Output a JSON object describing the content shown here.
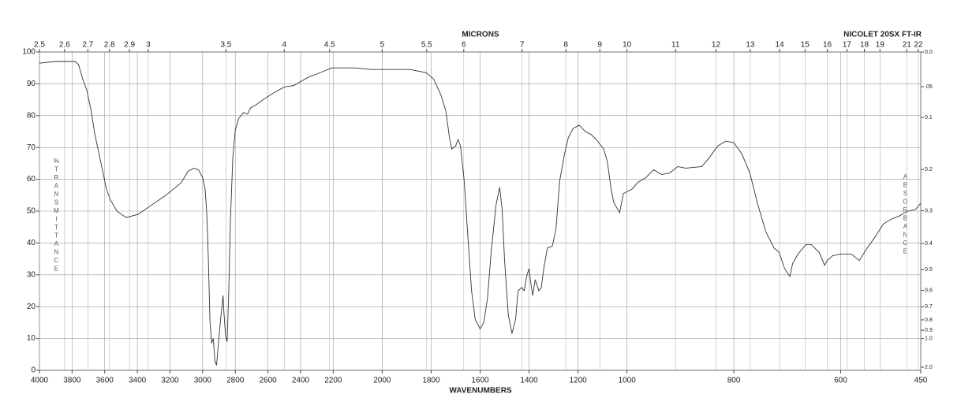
{
  "chart_data": {
    "type": "line",
    "title": "NICOLET 20SX FT-IR",
    "xlabel": "WAVENUMBERS",
    "x2label": "MICRONS",
    "ylabel": "%TRANSMITTANCE",
    "y2label": "ABSORBANCE",
    "xlim": [
      4000,
      450
    ],
    "x_scale_breaks": [
      2200,
      1000
    ],
    "xticks": [
      4000,
      3800,
      3600,
      3400,
      3200,
      3000,
      2800,
      2600,
      2400,
      2200,
      2000,
      1800,
      1600,
      1400,
      1200,
      1000,
      800,
      600,
      450
    ],
    "x2ticks": [
      2.5,
      2.6,
      2.7,
      2.8,
      2.9,
      3,
      3.5,
      4,
      4.5,
      5,
      5.5,
      6,
      7,
      8,
      9,
      10,
      11,
      12,
      13,
      14,
      15,
      16,
      17,
      18,
      19,
      21,
      22
    ],
    "ylim": [
      0,
      100
    ],
    "yticks": [
      0,
      10,
      20,
      30,
      40,
      50,
      60,
      70,
      80,
      90,
      100
    ],
    "y2ticks": [
      {
        "value": 0,
        "label": "0.0"
      },
      {
        "value": 0.05,
        "label": ".05"
      },
      0.1,
      0.2,
      0.3,
      0.4,
      0.5,
      0.6,
      0.7,
      0.8,
      0.9,
      {
        "value": 1,
        "label": "1.0"
      },
      {
        "value": 2,
        "label": "2.0"
      }
    ],
    "grid": true,
    "x": [
      4000,
      3905,
      3780,
      3760,
      3735,
      3710,
      3685,
      3660,
      3635,
      3610,
      3590,
      3565,
      3525,
      3470,
      3395,
      3325,
      3225,
      3130,
      3090,
      3055,
      3025,
      3000,
      2985,
      2975,
      2965,
      2955,
      2945,
      2935,
      2925,
      2915,
      2905,
      2890,
      2875,
      2870,
      2860,
      2850,
      2840,
      2830,
      2815,
      2800,
      2780,
      2750,
      2725,
      2705,
      2670,
      2630,
      2570,
      2500,
      2440,
      2355,
      2280,
      2210,
      2110,
      2045,
      2000,
      1950,
      1885,
      1820,
      1790,
      1760,
      1740,
      1725,
      1715,
      1700,
      1690,
      1680,
      1665,
      1650,
      1635,
      1620,
      1600,
      1585,
      1570,
      1555,
      1535,
      1520,
      1510,
      1500,
      1485,
      1470,
      1455,
      1445,
      1430,
      1420,
      1410,
      1400,
      1395,
      1385,
      1375,
      1360,
      1350,
      1340,
      1325,
      1305,
      1290,
      1275,
      1255,
      1240,
      1220,
      1195,
      1170,
      1145,
      1120,
      1095,
      1080,
      1065,
      1055,
      1045,
      1030,
      1015,
      990,
      980,
      965,
      950,
      935,
      920,
      905,
      890,
      860,
      845,
      830,
      815,
      800,
      785,
      770,
      755,
      740,
      725,
      715,
      705,
      695,
      690,
      680,
      665,
      655,
      640,
      630,
      625,
      615,
      600,
      580,
      565,
      550,
      535,
      520,
      505,
      490,
      475,
      460,
      450
    ],
    "series": [
      {
        "color": "#333333",
        "values": [
          96.5,
          97,
          97,
          96,
          91.5,
          88,
          82,
          74,
          68,
          62,
          57,
          53.5,
          50,
          48,
          49,
          51.5,
          55,
          59,
          62.5,
          63.5,
          63,
          60.5,
          57,
          49.5,
          35,
          15,
          8.5,
          10,
          3,
          1.5,
          7.5,
          16,
          23.5,
          18.5,
          11,
          9,
          25,
          47,
          67,
          75.5,
          79,
          81,
          80.5,
          82.5,
          83.5,
          85,
          87,
          89,
          89.5,
          92,
          93.5,
          95,
          95,
          94.5,
          94.5,
          94.5,
          94.5,
          93.5,
          91.5,
          86.5,
          81.5,
          73,
          69.5,
          70.5,
          72.5,
          70.5,
          59.5,
          42,
          25,
          16,
          13,
          15,
          22.5,
          37,
          52,
          57.5,
          50.5,
          34.5,
          17.5,
          11.5,
          16,
          25,
          26,
          25,
          29.5,
          32,
          28.5,
          23.5,
          28.5,
          25,
          26,
          32,
          38.5,
          39,
          44.5,
          59.5,
          68,
          73,
          76,
          77,
          75,
          74,
          72,
          69.5,
          65.5,
          57,
          53,
          51.5,
          49.5,
          55.5,
          57,
          59,
          60.5,
          63,
          61.5,
          62,
          64,
          63.5,
          64,
          67,
          70.5,
          72,
          71.5,
          68,
          62,
          52,
          43.5,
          38.5,
          37,
          32,
          29.5,
          33.5,
          36.5,
          39.5,
          39.5,
          37,
          33,
          34.5,
          36,
          36.5,
          36.5,
          34.5,
          38.5,
          42,
          46,
          47.5,
          48.5,
          50,
          50.5,
          52.5
        ]
      }
    ]
  }
}
